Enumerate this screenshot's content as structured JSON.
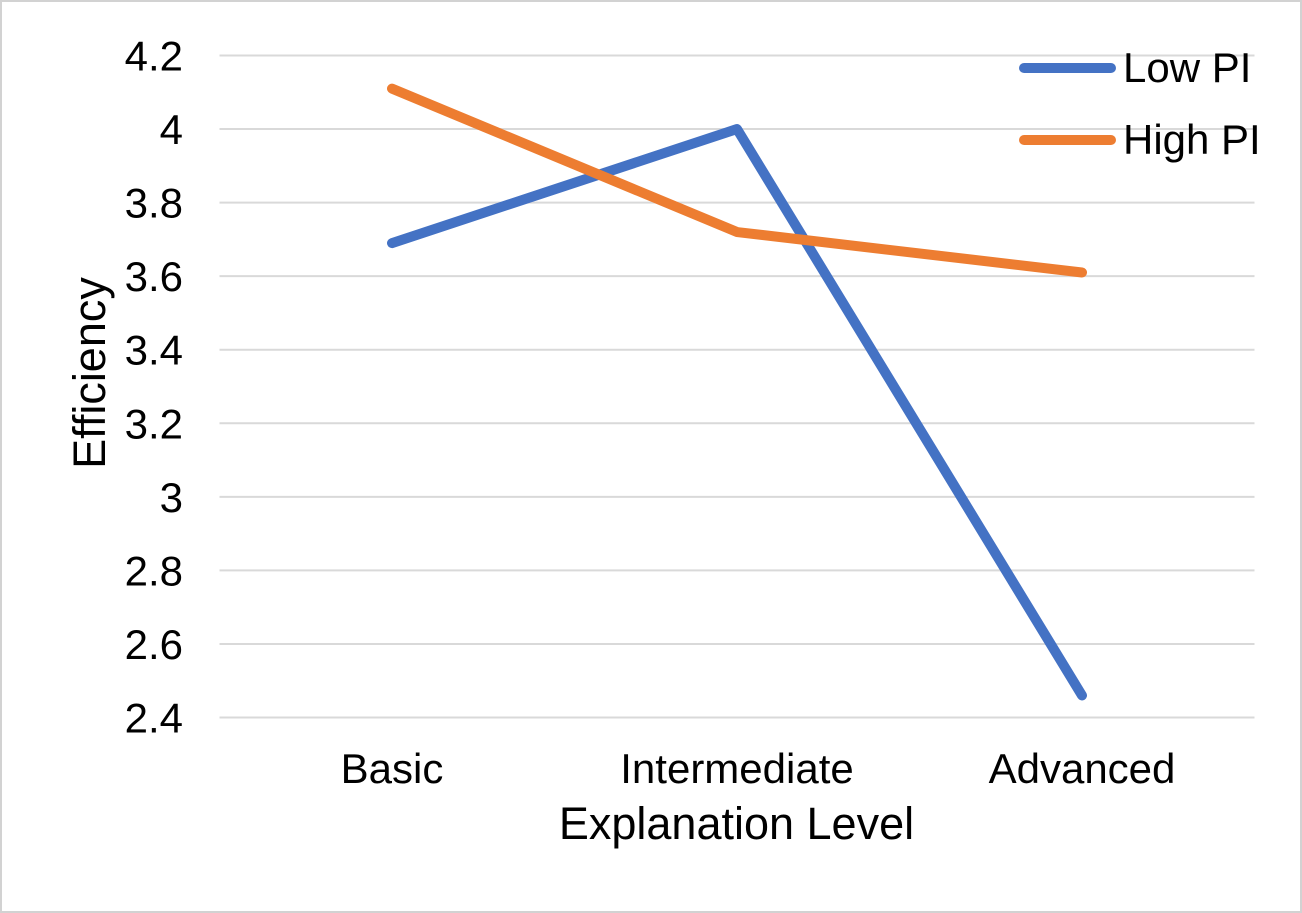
{
  "chart_data": {
    "type": "line",
    "categories": [
      "Basic",
      "Intermediate",
      "Advanced"
    ],
    "series": [
      {
        "name": "Low PI",
        "color": "#4472C4",
        "values": [
          3.69,
          4.0,
          2.46
        ]
      },
      {
        "name": "High PI",
        "color": "#ED7D31",
        "values": [
          4.11,
          3.72,
          3.61
        ]
      }
    ],
    "xlabel": "Explanation Level",
    "ylabel": "Efficiency",
    "ylim": [
      2.4,
      4.2
    ],
    "yticks": [
      4.2,
      4.0,
      3.8,
      3.6,
      3.4,
      3.2,
      3.0,
      2.8,
      2.6,
      2.4
    ],
    "ytick_labels": [
      "4.2",
      "4",
      "3.8",
      "3.6",
      "3.4",
      "3.2",
      "3",
      "2.8",
      "2.6",
      "2.4"
    ],
    "grid": "horizontal-only",
    "gridline_color": "#d9d9d9",
    "text_color": "#000000",
    "legend_position": "top-right",
    "line_width": 10
  }
}
